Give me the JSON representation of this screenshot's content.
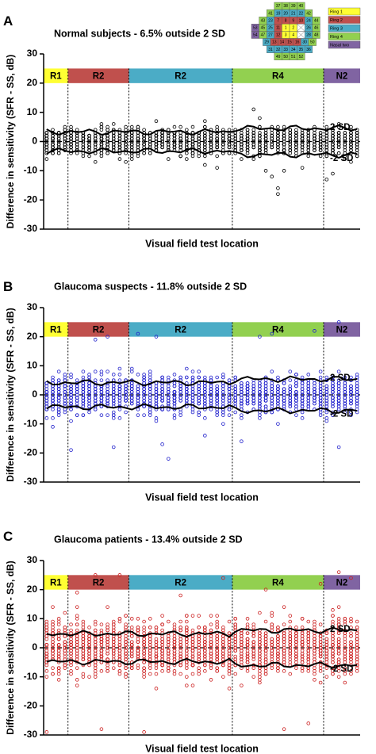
{
  "chart_data": [
    {
      "type": "scatter",
      "panel_label": "A",
      "title": "Normal subjects - 6.5% outside 2 SD",
      "xlabel": "Visual field test location",
      "ylabel": "Difference in sensitivity  (SFR - SS, dB)",
      "ylim": [
        -30,
        30
      ],
      "yticks": [
        -30,
        -20,
        -10,
        0,
        10,
        20,
        30
      ],
      "grid": false,
      "color": "#000000",
      "n_locations": 52,
      "points_per_location": 40,
      "spread_sd": 2.1,
      "sd_band": 3.3,
      "outliers": [
        {
          "loc": 35,
          "y": 11
        },
        {
          "loc": 36,
          "y": 8
        },
        {
          "loc": 29,
          "y": -9
        },
        {
          "loc": 37,
          "y": -10
        },
        {
          "loc": 38,
          "y": -12
        },
        {
          "loc": 39,
          "y": -16
        },
        {
          "loc": 39,
          "y": -18
        },
        {
          "loc": 40,
          "y": -10
        },
        {
          "loc": 43,
          "y": -9
        },
        {
          "loc": 47,
          "y": -13
        },
        {
          "loc": 48,
          "y": -11
        }
      ],
      "regions": [
        {
          "label": "R1",
          "start": 0.5,
          "end": 4.5,
          "color": "#ffff33"
        },
        {
          "label": "R2",
          "start": 4.5,
          "end": 14.5,
          "color": "#c0504d"
        },
        {
          "label": "R2",
          "start": 14.5,
          "end": 31.5,
          "color": "#4bacc6"
        },
        {
          "label": "R4",
          "start": 31.5,
          "end": 46.5,
          "color": "#92d050"
        },
        {
          "label": "N2",
          "start": 46.5,
          "end": 52.5,
          "color": "#8064a2"
        }
      ],
      "sd_labels": [
        "2 SD",
        "-2 SD"
      ]
    },
    {
      "type": "scatter",
      "panel_label": "B",
      "title": "Glaucoma suspects - 11.8% outside 2 SD",
      "xlabel": "Visual field test location",
      "ylabel": "Difference in sensitivity  (SFR - SS, dB)",
      "ylim": [
        -30,
        30
      ],
      "yticks": [
        -30,
        -20,
        -10,
        0,
        10,
        20,
        30
      ],
      "grid": false,
      "color": "#2222cc",
      "n_locations": 52,
      "points_per_location": 40,
      "spread_sd": 3.0,
      "sd_band": 4.2,
      "outliers": [
        {
          "loc": 9,
          "y": 19
        },
        {
          "loc": 11,
          "y": 20
        },
        {
          "loc": 5,
          "y": -19
        },
        {
          "loc": 16,
          "y": 21
        },
        {
          "loc": 19,
          "y": 20
        },
        {
          "loc": 21,
          "y": -22
        },
        {
          "loc": 20,
          "y": -17
        },
        {
          "loc": 27,
          "y": -14
        },
        {
          "loc": 36,
          "y": 20
        },
        {
          "loc": 38,
          "y": 21
        },
        {
          "loc": 45,
          "y": 22
        },
        {
          "loc": 49,
          "y": 25
        },
        {
          "loc": 49,
          "y": -18
        },
        {
          "loc": 12,
          "y": -18
        },
        {
          "loc": 33,
          "y": -16
        }
      ],
      "regions": [
        {
          "label": "R1",
          "start": 0.5,
          "end": 4.5,
          "color": "#ffff33"
        },
        {
          "label": "R2",
          "start": 4.5,
          "end": 14.5,
          "color": "#c0504d"
        },
        {
          "label": "R2",
          "start": 14.5,
          "end": 31.5,
          "color": "#4bacc6"
        },
        {
          "label": "R4",
          "start": 31.5,
          "end": 46.5,
          "color": "#92d050"
        },
        {
          "label": "N2",
          "start": 46.5,
          "end": 52.5,
          "color": "#8064a2"
        }
      ],
      "sd_labels": [
        "2 SD",
        "-2 SD"
      ]
    },
    {
      "type": "scatter",
      "panel_label": "C",
      "title": "Glaucoma patients - 13.4% outside 2 SD",
      "xlabel": "Visual field test location",
      "ylabel": "Difference in sensitivity  (SFR - SS, dB)",
      "ylim": [
        -30,
        30
      ],
      "yticks": [
        -30,
        -20,
        -10,
        0,
        10,
        20,
        30
      ],
      "grid": false,
      "color": "#cc2222",
      "n_locations": 52,
      "points_per_location": 40,
      "spread_sd": 4.4,
      "sd_band": 4.8,
      "outliers": [
        {
          "loc": 9,
          "y": 25
        },
        {
          "loc": 13,
          "y": 25
        },
        {
          "loc": 10,
          "y": -28
        },
        {
          "loc": 17,
          "y": -29
        },
        {
          "loc": 40,
          "y": -28
        },
        {
          "loc": 49,
          "y": 26
        },
        {
          "loc": 51,
          "y": 24
        },
        {
          "loc": 30,
          "y": 24
        },
        {
          "loc": 44,
          "y": -26
        },
        {
          "loc": 1,
          "y": -29
        },
        {
          "loc": 6,
          "y": 19
        },
        {
          "loc": 23,
          "y": 18
        },
        {
          "loc": 37,
          "y": 20
        },
        {
          "loc": 46,
          "y": 22
        }
      ],
      "regions": [
        {
          "label": "R1",
          "start": 0.5,
          "end": 4.5,
          "color": "#ffff33"
        },
        {
          "label": "R2",
          "start": 4.5,
          "end": 14.5,
          "color": "#c0504d"
        },
        {
          "label": "R2",
          "start": 14.5,
          "end": 31.5,
          "color": "#4bacc6"
        },
        {
          "label": "R4",
          "start": 31.5,
          "end": 46.5,
          "color": "#92d050"
        },
        {
          "label": "N2",
          "start": 46.5,
          "end": 52.5,
          "color": "#8064a2"
        }
      ],
      "sd_labels": [
        "2 SD",
        "-2 SD"
      ]
    }
  ],
  "inset_map": {
    "rows": [
      [
        "37",
        "38",
        "39",
        "40"
      ],
      [
        "41",
        "19",
        "20",
        "21",
        "22",
        "42"
      ],
      [
        "43",
        "23",
        "7",
        "8",
        "9",
        "10",
        "24",
        "44"
      ],
      [
        "53",
        "45",
        "25",
        "11",
        "1",
        "2",
        "",
        "26",
        "46"
      ],
      [
        "54",
        "47",
        "27",
        "12",
        "3",
        "4",
        "",
        "28",
        "48"
      ],
      [
        "29",
        "13",
        "14",
        "15",
        "16",
        "30",
        "50"
      ],
      [
        "31",
        "32",
        "33",
        "34",
        "35",
        "36"
      ],
      [
        "49",
        "50",
        "51",
        "52"
      ]
    ],
    "legend": [
      {
        "label": "Ring 1",
        "color": "#ffff33"
      },
      {
        "label": "Ring 2",
        "color": "#c0504d"
      },
      {
        "label": "Ring 3",
        "color": "#4bacc6"
      },
      {
        "label": "Ring 4",
        "color": "#92d050"
      },
      {
        "label": "Nasal two",
        "color": "#8064a2"
      }
    ]
  }
}
